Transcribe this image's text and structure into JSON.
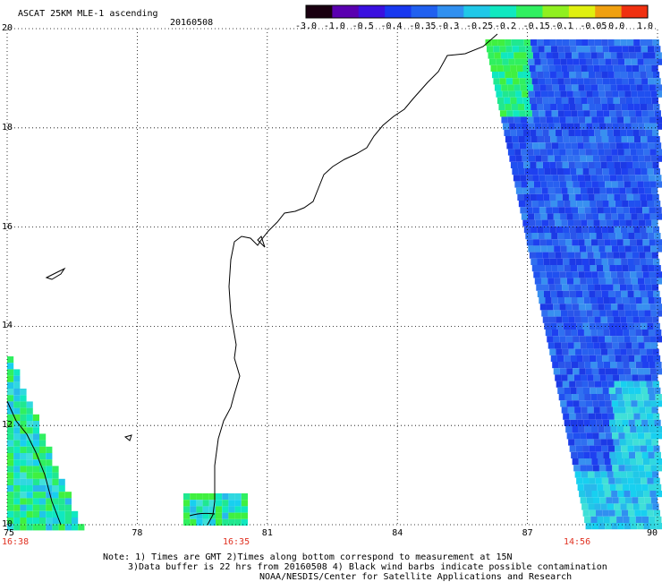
{
  "header": {
    "title": "ASCAT 25KM MLE-1 ascending",
    "date": "20160508"
  },
  "colorbar": {
    "labels": [
      "-3.0",
      "-1.0",
      "-0.5",
      "-0.4",
      "-0.35",
      "-0.3",
      "-0.25",
      "-0.2",
      "-0.15",
      "-0.1",
      "-0.05",
      "0.0",
      "1.0"
    ],
    "colors": [
      "#1a0010",
      "#5a00b0",
      "#3a10e0",
      "#1838f0",
      "#2060f0",
      "#3090f0",
      "#20c8e8",
      "#10e8c0",
      "#30f060",
      "#90f020",
      "#e0f010",
      "#f0a010",
      "#f03010"
    ]
  },
  "axes": {
    "lat_labels": [
      "20",
      "18",
      "16",
      "14",
      "12",
      "10"
    ],
    "lon_labels": [
      "75",
      "78",
      "81",
      "84",
      "87",
      "90"
    ],
    "time_labels": [
      "16:38",
      "16:35",
      "14:56"
    ]
  },
  "notes": {
    "line1": "Note: 1) Times are GMT 2)Times along bottom correspond to measurement at 15N",
    "line2": "3)Data buffer is 22 hrs from 20160508 4) Black wind barbs indicate possible contamination",
    "line3": "NOAA/NESDIS/Center for Satellite Applications and Research"
  },
  "colors": {
    "grid": "#000000",
    "coast": "#000000",
    "time_red": "#e03020"
  }
}
